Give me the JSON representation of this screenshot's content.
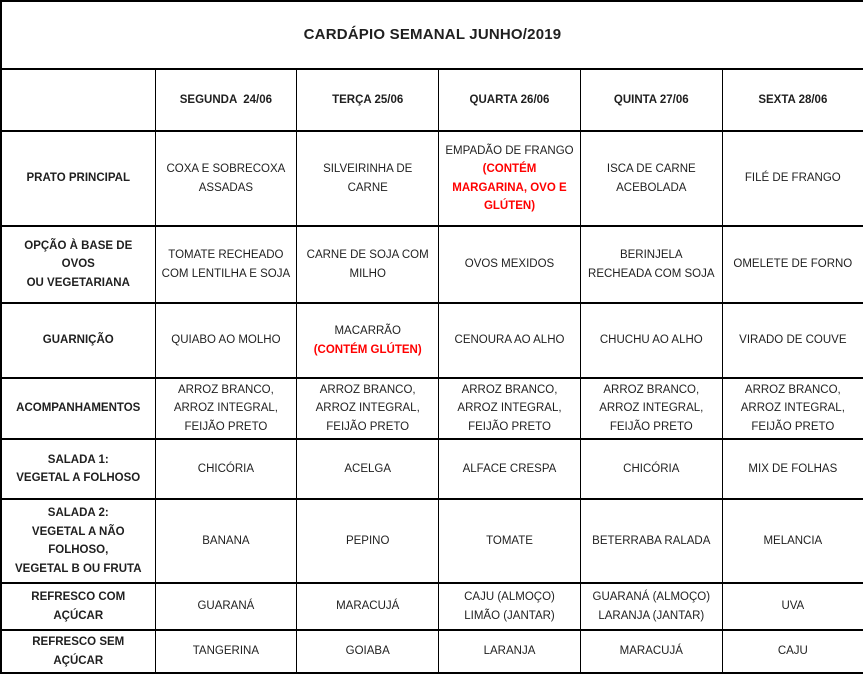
{
  "title": "CARDÁPIO SEMANAL JUNHO/2019",
  "colors": {
    "allergen_warning": "#ff0000",
    "text": "#1f1f1f",
    "border": "#000000",
    "background": "#ffffff"
  },
  "columns": [
    "",
    "SEGUNDA  24/06",
    "TERÇA 25/06",
    "QUARTA 26/06",
    "QUINTA 27/06",
    "SEXTA 28/06"
  ],
  "rows": [
    {
      "label": "PRATO PRINCIPAL",
      "cells": [
        {
          "text": "COXA E SOBRECOXA ASSADAS"
        },
        {
          "text": "SILVEIRINHA DE CARNE"
        },
        {
          "text": "EMPADÃO DE FRANGO",
          "warning": "(CONTÉM MARGARINA, OVO E GLÚTEN)"
        },
        {
          "text": "ISCA DE CARNE ACEBOLADA"
        },
        {
          "text": "FILÉ DE FRANGO"
        }
      ]
    },
    {
      "label": "OPÇÃO À BASE DE OVOS\nOU VEGETARIANA",
      "cells": [
        {
          "text": "TOMATE RECHEADO COM LENTILHA E SOJA"
        },
        {
          "text": "CARNE DE SOJA COM MILHO"
        },
        {
          "text": "OVOS MEXIDOS"
        },
        {
          "text": "BERINJELA RECHEADA COM SOJA"
        },
        {
          "text": "OMELETE DE FORNO"
        }
      ]
    },
    {
      "label": "GUARNIÇÃO",
      "cells": [
        {
          "text": "QUIABO AO MOLHO"
        },
        {
          "text": "MACARRÃO",
          "warning": "(CONTÉM GLÚTEN)"
        },
        {
          "text": "CENOURA AO ALHO"
        },
        {
          "text": "CHUCHU AO ALHO"
        },
        {
          "text": "VIRADO DE COUVE"
        }
      ]
    },
    {
      "label": "ACOMPANHAMENTOS",
      "cells": [
        {
          "text": "ARROZ BRANCO, ARROZ INTEGRAL, FEIJÃO PRETO"
        },
        {
          "text": "ARROZ BRANCO, ARROZ INTEGRAL, FEIJÃO PRETO"
        },
        {
          "text": "ARROZ BRANCO, ARROZ INTEGRAL, FEIJÃO PRETO"
        },
        {
          "text": "ARROZ BRANCO, ARROZ INTEGRAL, FEIJÃO PRETO"
        },
        {
          "text": "ARROZ BRANCO, ARROZ INTEGRAL, FEIJÃO PRETO"
        }
      ]
    },
    {
      "label": "SALADA 1:\nVEGETAL A FOLHOSO",
      "cells": [
        {
          "text": "CHICÓRIA"
        },
        {
          "text": "ACELGA"
        },
        {
          "text": "ALFACE CRESPA"
        },
        {
          "text": "CHICÓRIA"
        },
        {
          "text": "MIX DE FOLHAS"
        }
      ]
    },
    {
      "label": "SALADA 2:\nVEGETAL A NÃO FOLHOSO,\nVEGETAL B OU FRUTA",
      "cells": [
        {
          "text": "BANANA"
        },
        {
          "text": "PEPINO"
        },
        {
          "text": "TOMATE"
        },
        {
          "text": "BETERRABA RALADA"
        },
        {
          "text": "MELANCIA"
        }
      ]
    },
    {
      "label": "REFRESCO COM AÇÚCAR",
      "cells": [
        {
          "text": "GUARANÁ"
        },
        {
          "text": "MARACUJÁ"
        },
        {
          "text": "CAJU (ALMOÇO)\nLIMÃO (JANTAR)"
        },
        {
          "text": "GUARANÁ (ALMOÇO)\nLARANJA (JANTAR)"
        },
        {
          "text": "UVA"
        }
      ]
    },
    {
      "label": "REFRESCO SEM AÇÚCAR",
      "cells": [
        {
          "text": "TANGERINA"
        },
        {
          "text": "GOIABA"
        },
        {
          "text": "LARANJA"
        },
        {
          "text": "MARACUJÁ"
        },
        {
          "text": "CAJU"
        }
      ]
    }
  ]
}
